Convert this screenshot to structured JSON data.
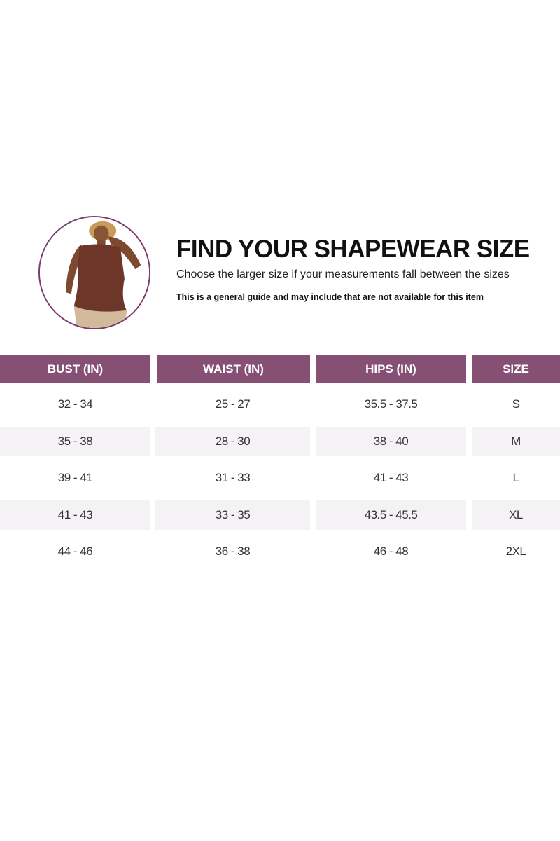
{
  "header": {
    "title": "FIND YOUR SHAPEWEAR SIZE",
    "subtitle": "Choose the larger size if your measurements fall between the sizes",
    "note": "This is a general guide and may include that are not available for this item"
  },
  "colors": {
    "accent": "#864f74",
    "stripe": "#f4f2f5",
    "border": "#7b3a6c"
  },
  "table": {
    "columns": [
      "BUST (IN)",
      "WAIST (IN)",
      "HIPS (IN)",
      "SIZE"
    ],
    "rows": [
      [
        "32 - 34",
        "25 - 27",
        "35.5 - 37.5",
        "S"
      ],
      [
        "35 - 38",
        "28 - 30",
        "38 - 40",
        "M"
      ],
      [
        "39 - 41",
        "31 - 33",
        "41 - 43",
        "L"
      ],
      [
        "41 - 43",
        "33 - 35",
        "43.5 - 45.5",
        "XL"
      ],
      [
        "44 - 46",
        "36 - 38",
        "46 - 48",
        "2XL"
      ]
    ]
  }
}
